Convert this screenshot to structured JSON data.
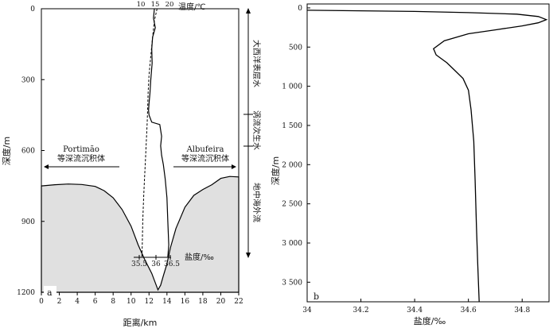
{
  "chart_data": [
    {
      "panel_label": "a",
      "type": "line",
      "xlabel": "距离/km",
      "ylabel": "深度/m",
      "xlim": [
        0,
        22
      ],
      "ylim": [
        1200,
        0
      ],
      "x_ticks": [
        "0",
        "2",
        "4",
        "6",
        "8",
        "10",
        "12",
        "14",
        "16",
        "18",
        "20",
        "22"
      ],
      "y_ticks": [
        "0",
        "300",
        "600",
        "900",
        "1200"
      ],
      "y_tick_values": [
        0,
        300,
        600,
        900,
        1200
      ],
      "seafloor": [
        [
          0,
          750
        ],
        [
          1.5,
          745
        ],
        [
          3,
          742
        ],
        [
          4.5,
          744
        ],
        [
          6,
          752
        ],
        [
          7,
          770
        ],
        [
          8,
          800
        ],
        [
          9,
          850
        ],
        [
          10,
          920
        ],
        [
          10.8,
          1000
        ],
        [
          11.5,
          1060
        ],
        [
          12.3,
          1120
        ],
        [
          12.8,
          1170
        ],
        [
          13,
          1190
        ],
        [
          13.3,
          1170
        ],
        [
          13.6,
          1130
        ],
        [
          14,
          1080
        ],
        [
          14.4,
          1010
        ],
        [
          15,
          930
        ],
        [
          16,
          840
        ],
        [
          17,
          790
        ],
        [
          18,
          765
        ],
        [
          19,
          745
        ],
        [
          20,
          718
        ],
        [
          21,
          710
        ],
        [
          22,
          712
        ]
      ],
      "temperature_axis": {
        "label": "温度/℃",
        "ticks": [
          "10",
          "15",
          "20"
        ]
      },
      "salinity_axis": {
        "label": "盐度/‰",
        "ticks": [
          "35.5",
          "36",
          "36.5"
        ]
      },
      "series": [
        {
          "style": "solid",
          "points": [
            [
              12.6,
              0
            ],
            [
              12.5,
              40
            ],
            [
              12.7,
              80
            ],
            [
              12.4,
              120
            ],
            [
              12.3,
              170
            ],
            [
              12.35,
              230
            ],
            [
              12.2,
              300
            ],
            [
              12.1,
              360
            ],
            [
              12.0,
              400
            ],
            [
              11.95,
              430
            ],
            [
              12.0,
              450
            ],
            [
              12.3,
              480
            ],
            [
              13.2,
              490
            ],
            [
              13.4,
              540
            ],
            [
              13.3,
              580
            ],
            [
              13.4,
              620
            ],
            [
              13.6,
              660
            ],
            [
              13.8,
              720
            ],
            [
              14.0,
              800
            ],
            [
              14.1,
              900
            ],
            [
              14.2,
              1000
            ],
            [
              14.1,
              1050
            ]
          ]
        },
        {
          "style": "dashed",
          "points": [
            [
              12.9,
              0
            ],
            [
              12.6,
              50
            ],
            [
              12.4,
              120
            ],
            [
              12.2,
              200
            ],
            [
              12.0,
              280
            ],
            [
              11.9,
              360
            ],
            [
              11.85,
              420
            ],
            [
              11.8,
              480
            ],
            [
              11.7,
              560
            ],
            [
              11.6,
              640
            ],
            [
              11.5,
              720
            ],
            [
              11.4,
              800
            ],
            [
              11.3,
              900
            ],
            [
              11.25,
              1000
            ],
            [
              11.2,
              1050
            ]
          ]
        }
      ],
      "water_masses": [
        "大西洋表层水",
        "涡流次生水",
        "地中海外流"
      ],
      "deposits": [
        {
          "name": "Portimão",
          "label": "等深流沉积体"
        },
        {
          "name": "Albufeira",
          "label": "等深流沉积体"
        }
      ]
    },
    {
      "panel_label": "b",
      "type": "line",
      "xlabel": "盐度/‰",
      "ylabel": "深度/m",
      "xlim": [
        34,
        34.9
      ],
      "ylim": [
        3750,
        -50
      ],
      "x_ticks": [
        "34",
        "34.2",
        "34.4",
        "34.6",
        "34.8"
      ],
      "x_tick_values": [
        34,
        34.2,
        34.4,
        34.6,
        34.8
      ],
      "y_ticks": [
        "0",
        "500",
        "1 000",
        "1 500",
        "2 000",
        "2 500",
        "3 000",
        "3 500"
      ],
      "y_tick_values": [
        0,
        500,
        1000,
        1500,
        2000,
        2500,
        3000,
        3500
      ],
      "series": [
        {
          "points": [
            [
              34.0,
              30
            ],
            [
              34.4,
              45
            ],
            [
              34.6,
              60
            ],
            [
              34.78,
              80
            ],
            [
              34.86,
              110
            ],
            [
              34.89,
              150
            ],
            [
              34.86,
              190
            ],
            [
              34.8,
              230
            ],
            [
              34.7,
              280
            ],
            [
              34.6,
              330
            ],
            [
              34.51,
              420
            ],
            [
              34.47,
              520
            ],
            [
              34.48,
              600
            ],
            [
              34.52,
              700
            ],
            [
              34.55,
              800
            ],
            [
              34.58,
              900
            ],
            [
              34.6,
              1050
            ],
            [
              34.61,
              1300
            ],
            [
              34.62,
              1700
            ],
            [
              34.625,
              2200
            ],
            [
              34.63,
              2800
            ],
            [
              34.635,
              3300
            ],
            [
              34.64,
              3750
            ]
          ]
        }
      ]
    }
  ]
}
